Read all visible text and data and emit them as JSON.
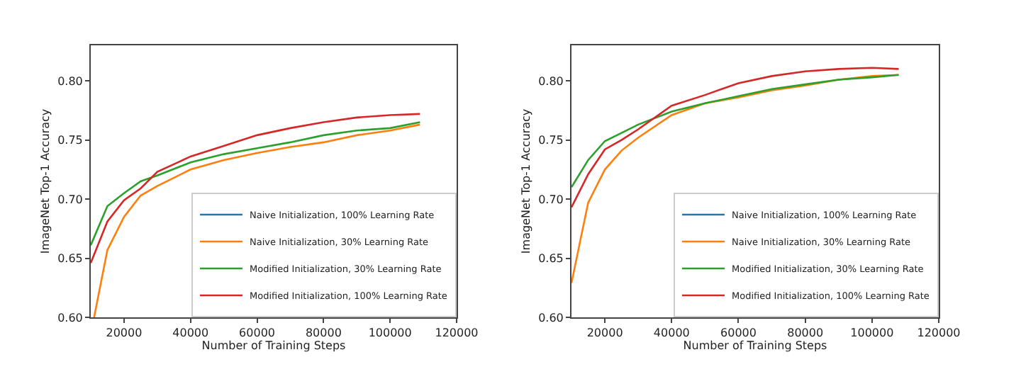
{
  "chart_data": [
    {
      "type": "line",
      "xlabel": "Number of Training Steps",
      "ylabel": "ImageNet Top-1 Accuracy",
      "x": [
        10000,
        15000,
        20000,
        25000,
        30000,
        40000,
        50000,
        60000,
        70000,
        80000,
        90000,
        100000,
        109000
      ],
      "xlim": [
        10000,
        120000
      ],
      "xticks": [
        20000,
        40000,
        60000,
        80000,
        100000,
        120000
      ],
      "ylim": [
        0.6,
        0.83
      ],
      "yticks": [
        {
          "value": 0.6,
          "label": "0.60"
        },
        {
          "value": 0.65,
          "label": "0.65"
        },
        {
          "value": 0.7,
          "label": "0.70"
        },
        {
          "value": 0.75,
          "label": "0.75"
        },
        {
          "value": 0.8,
          "label": "0.80"
        }
      ],
      "legend": "bottom right",
      "grid": false,
      "series": [
        {
          "name": "Naive Initialization, 100% Learning Rate",
          "color": "#1f77b4",
          "values": [
            null,
            null,
            null,
            null,
            null,
            null,
            null,
            null,
            null,
            null,
            null,
            null,
            null
          ]
        },
        {
          "name": "Naive Initialization, 30% Learning Rate",
          "color": "#ff7f0e",
          "x": [
            11000,
            15000,
            20000,
            25000,
            30000,
            40000,
            50000,
            60000,
            70000,
            80000,
            90000,
            100000,
            109000
          ],
          "values": [
            0.6,
            0.657,
            0.685,
            0.703,
            0.711,
            0.725,
            0.733,
            0.739,
            0.744,
            0.748,
            0.754,
            0.758,
            0.763
          ]
        },
        {
          "name": "Modified Initialization, 30% Learning Rate",
          "color": "#2ca02c",
          "values": [
            0.661,
            0.694,
            0.705,
            0.715,
            0.72,
            0.731,
            0.738,
            0.743,
            0.748,
            0.754,
            0.758,
            0.76,
            0.765
          ]
        },
        {
          "name": "Modified Initialization, 100% Learning Rate",
          "color": "#d62728",
          "values": [
            0.646,
            0.681,
            0.699,
            0.709,
            0.723,
            0.736,
            0.745,
            0.754,
            0.76,
            0.765,
            0.769,
            0.771,
            0.772
          ]
        }
      ]
    },
    {
      "type": "line",
      "xlabel": "Number of Training Steps",
      "ylabel": "ImageNet Top-1 Accuracy",
      "x": [
        10000,
        15000,
        20000,
        25000,
        30000,
        40000,
        50000,
        60000,
        70000,
        80000,
        90000,
        100000,
        108000
      ],
      "xlim": [
        10000,
        120000
      ],
      "xticks": [
        20000,
        40000,
        60000,
        80000,
        100000,
        120000
      ],
      "ylim": [
        0.6,
        0.83
      ],
      "yticks": [
        {
          "value": 0.6,
          "label": "0.60"
        },
        {
          "value": 0.65,
          "label": "0.65"
        },
        {
          "value": 0.7,
          "label": "0.70"
        },
        {
          "value": 0.75,
          "label": "0.75"
        },
        {
          "value": 0.8,
          "label": "0.80"
        }
      ],
      "legend": "bottom right",
      "grid": false,
      "series": [
        {
          "name": "Naive Initialization, 100% Learning Rate",
          "color": "#1f77b4",
          "values": [
            null,
            null,
            null,
            null,
            null,
            null,
            null,
            null,
            null,
            null,
            null,
            null,
            null
          ]
        },
        {
          "name": "Naive Initialization, 30% Learning Rate",
          "color": "#ff7f0e",
          "values": [
            0.629,
            0.697,
            0.725,
            0.741,
            0.752,
            0.771,
            0.781,
            0.786,
            0.792,
            0.796,
            0.801,
            0.804,
            0.805
          ]
        },
        {
          "name": "Modified Initialization, 30% Learning Rate",
          "color": "#2ca02c",
          "values": [
            0.71,
            0.733,
            0.749,
            0.756,
            0.763,
            0.774,
            0.781,
            0.787,
            0.793,
            0.797,
            0.801,
            0.803,
            0.805
          ]
        },
        {
          "name": "Modified Initialization, 100% Learning Rate",
          "color": "#d62728",
          "values": [
            0.693,
            0.721,
            0.742,
            0.75,
            0.759,
            0.779,
            0.788,
            0.798,
            0.804,
            0.808,
            0.81,
            0.811,
            0.81
          ]
        }
      ]
    }
  ]
}
